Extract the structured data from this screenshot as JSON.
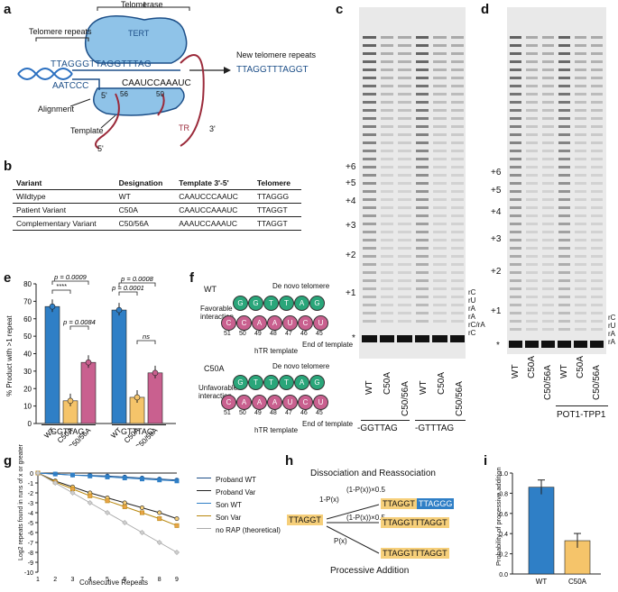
{
  "panels": {
    "a": "a",
    "b": "b",
    "c": "c",
    "d": "d",
    "e": "e",
    "f": "f",
    "g": "g",
    "h": "h",
    "i": "i"
  },
  "panel_a": {
    "telomerase": "Telomerase",
    "tert": "TERT",
    "telomere_repeats": "Telomere repeats",
    "new_telomere_repeats": "New telomere repeats",
    "dna_top": "TTAGGGTTAGGTTTAG",
    "dna_bottom": "AATCCC",
    "template_seq": "CAAUCCAAAUC",
    "five_prime": "5'",
    "three_prime": "3'",
    "pos56": "56",
    "pos50": "50",
    "alignment": "Alignment",
    "template": "Template",
    "tr": "TR",
    "new_seq": "TTAGGTTTAGGT"
  },
  "panel_b": {
    "headers": [
      "Variant",
      "Designation",
      "Template 3'-5'",
      "Telomere"
    ],
    "rows": [
      [
        "Wildtype",
        "WT",
        "CAAUCCCAAUC",
        "TTAGGG"
      ],
      [
        "Patient Variant",
        "C50A",
        "CAAUCCAAAUC",
        "TTAGGT"
      ],
      [
        "Complementary Variant",
        "C50/56A",
        "AAAUCCAAAUC",
        "TTAGGT"
      ]
    ]
  },
  "panel_c": {
    "ladder": [
      "+6",
      "+5",
      "+4",
      "+3",
      "+2",
      "+1",
      "*"
    ],
    "side": [
      "rC",
      "rU",
      "rA",
      "rA",
      "rC/rA",
      "rC"
    ],
    "lanes": [
      "WT",
      "C50A",
      "C50/56A",
      "WT",
      "C50A",
      "C50/56A"
    ],
    "groups": [
      "-GGTTAG",
      "-GTTTAG"
    ]
  },
  "panel_d": {
    "ladder": [
      "+6",
      "+5",
      "+4",
      "+3",
      "+2",
      "+1",
      "*"
    ],
    "side": [
      "rC",
      "rU",
      "rA",
      "rA"
    ],
    "lanes": [
      "WT",
      "C50A",
      "C50/56A",
      "WT",
      "C50A",
      "C50/56A"
    ],
    "group": "POT1-TPP1"
  },
  "panel_e": {
    "ylabel": "% Product with >1 repeat",
    "yticks": [
      "0",
      "10",
      "20",
      "30",
      "40",
      "50",
      "60",
      "70",
      "80"
    ],
    "categories": [
      "WT",
      "C50A",
      "C50/56A",
      "WT",
      "C50A",
      "C50/56A"
    ],
    "values": [
      67,
      13,
      35,
      65,
      15,
      29
    ],
    "groups": [
      "GGTTAG",
      "GTTTAG"
    ],
    "stats": [
      "p = 0.0009",
      "****",
      "p = 0.0084",
      "p = 0.0008",
      "p = 0.0001",
      "ns"
    ],
    "colors": [
      "#2f7fc6",
      "#f5c46a",
      "#c9608f"
    ]
  },
  "panel_f": {
    "wt": "WT",
    "c50a": "C50A",
    "de_novo": "De novo telomere",
    "favorable": "Favorable interaction",
    "unfavorable": "Unfavorable interaction",
    "htr": "hTR template",
    "end": "End of template",
    "wt_top": [
      "G",
      "G",
      "T",
      "T",
      "A",
      "G"
    ],
    "wt_bottom": [
      "C",
      "C",
      "A",
      "A",
      "U",
      "C",
      "U"
    ],
    "c50a_top": [
      "G",
      "T",
      "T",
      "T",
      "A",
      "G"
    ],
    "c50a_bottom": [
      "C",
      "A",
      "A",
      "A",
      "U",
      "C",
      "U"
    ],
    "nums": [
      "51",
      "50",
      "49",
      "48",
      "47",
      "46",
      "45"
    ]
  },
  "panel_g": {
    "ylabel": "Log2 repeats found in runs of x or greater",
    "xlabel": "Consecutive Repeats",
    "xticks": [
      "1",
      "2",
      "3",
      "4",
      "5",
      "6",
      "7",
      "8",
      "9"
    ],
    "yticks": [
      "0",
      "-1",
      "-2",
      "-3",
      "-4",
      "-5",
      "-6",
      "-7",
      "-8",
      "-9",
      "-10"
    ],
    "legend": [
      "Proband WT",
      "Proband Var",
      "Son WT",
      "Son Var",
      "no RAP (theoretical)"
    ]
  },
  "panel_h": {
    "title": "Dissociation and Reassociation",
    "bottom": "Processive Addition",
    "start": "TTAGGT",
    "p1": "1-P(x)",
    "p2": "(1-P(x))×0.5",
    "p3": "(1-P(x))×0.5",
    "p4": "P(x)",
    "seq1a": "TTAGGT",
    "seq1b": "TTAGGG",
    "seq2": "TTAGGTTTAGGT",
    "seq3": "TTAGGTTTAGGT"
  },
  "panel_i": {
    "ylabel": "Probability of processive addition",
    "yticks": [
      "0.0",
      "0.2",
      "0.4",
      "0.6",
      "0.8",
      "1.0"
    ],
    "categories": [
      "WT",
      "C50A"
    ],
    "values": [
      0.86,
      0.33
    ]
  },
  "chart_data": [
    {
      "type": "bar",
      "title": "",
      "ylabel": "% Product with >1 repeat",
      "ylim": [
        0,
        80
      ],
      "categories": [
        "WT",
        "C50A",
        "C50/56A",
        "WT",
        "C50A",
        "C50/56A"
      ],
      "values": [
        67,
        13,
        35,
        65,
        15,
        29
      ],
      "groups": [
        "GGTTAG",
        "GTTTAG"
      ]
    },
    {
      "type": "line",
      "xlabel": "Consecutive Repeats",
      "ylabel": "Log2 repeats found in runs of x or greater",
      "x": [
        1,
        2,
        3,
        4,
        5,
        6,
        7,
        8,
        9
      ],
      "ylim": [
        -10,
        0
      ],
      "series": [
        {
          "name": "Proband WT",
          "values": [
            0,
            -0.1,
            -0.2,
            -0.25,
            -0.3,
            -0.4,
            -0.5,
            -0.6,
            -0.7
          ]
        },
        {
          "name": "Proband Var",
          "values": [
            0,
            -0.8,
            -1.4,
            -2.0,
            -2.5,
            -3.0,
            -3.5,
            -4.0,
            -4.6
          ]
        },
        {
          "name": "Son WT",
          "values": [
            0,
            -0.1,
            -0.2,
            -0.3,
            -0.4,
            -0.5,
            -0.6,
            -0.7,
            -0.8
          ]
        },
        {
          "name": "Son Var",
          "values": [
            0,
            -0.9,
            -1.6,
            -2.3,
            -2.8,
            -3.4,
            -4.0,
            -4.6,
            -5.3
          ]
        },
        {
          "name": "no RAP (theoretical)",
          "values": [
            0,
            -1,
            -2,
            -3,
            -4,
            -5,
            -6,
            -7,
            -8
          ]
        }
      ]
    },
    {
      "type": "bar",
      "ylabel": "Probability of processive addition",
      "ylim": [
        0,
        1
      ],
      "categories": [
        "WT",
        "C50A"
      ],
      "values": [
        0.86,
        0.33
      ]
    }
  ]
}
